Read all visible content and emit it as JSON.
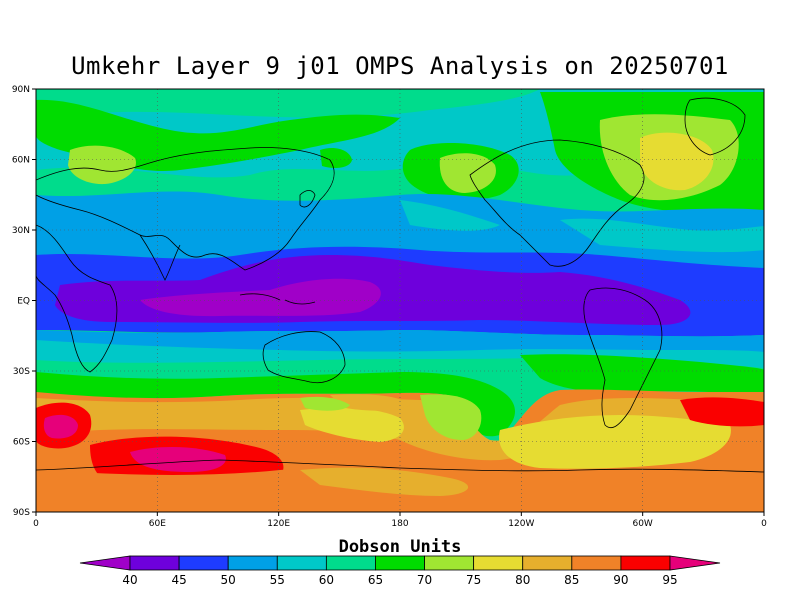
{
  "title": "Umkehr Layer 9 j01 OMPS Analysis on 20250701",
  "units_label": "Dobson Units",
  "lat_ticks": [
    "90N",
    "60N",
    "30N",
    "EQ",
    "30S",
    "60S",
    "90S"
  ],
  "lon_ticks": [
    "0",
    "60E",
    "120E",
    "180",
    "120W",
    "60W",
    "0"
  ],
  "colorbar": {
    "labels": [
      "40",
      "45",
      "50",
      "55",
      "60",
      "65",
      "70",
      "75",
      "80",
      "85",
      "90",
      "95"
    ],
    "colors": [
      "#a000c8",
      "#6e00dc",
      "#1e3cff",
      "#00a0e6",
      "#00c8c8",
      "#00dc8c",
      "#00dc00",
      "#a0e632",
      "#e6dc32",
      "#e6af2d",
      "#f08228",
      "#fa0000",
      "#e6007a"
    ]
  },
  "map": {
    "projection": "cylindrical-equidistant",
    "lon_range": [
      0,
      360
    ],
    "lat_range": [
      -90,
      90
    ],
    "field": "ozone column (DU)"
  }
}
